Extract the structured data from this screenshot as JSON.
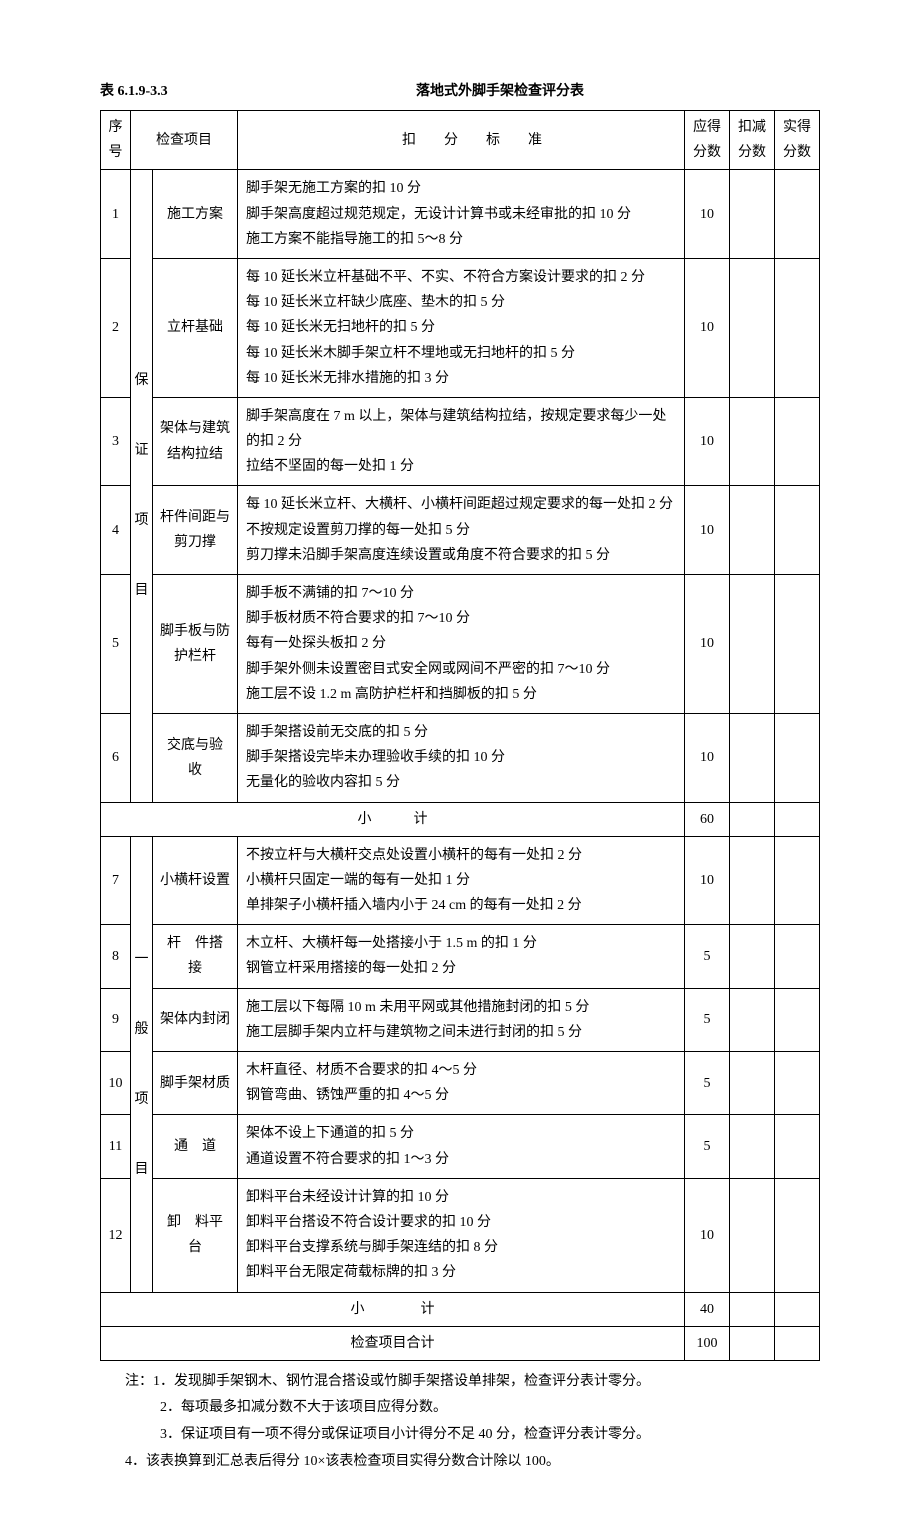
{
  "header": {
    "table_number": "表 6.1.9-3.3",
    "title": "落地式外脚手架检查评分表"
  },
  "columns": {
    "seq": "序号",
    "check_item": "检查项目",
    "criteria": "扣分标准",
    "should_score": "应得分数",
    "deduct_score": "扣减分数",
    "actual_score": "实得分数"
  },
  "group1_label": "保证项目",
  "group2_label": "一般项目",
  "rows": [
    {
      "seq": "1",
      "item": "施工方案",
      "criteria": "脚手架无施工方案的扣 10 分\n脚手架高度超过规范规定，无设计计算书或未经审批的扣 10 分\n施工方案不能指导施工的扣 5～8 分",
      "score": "10"
    },
    {
      "seq": "2",
      "item": "立杆基础",
      "criteria": "每 10 延长米立杆基础不平、不实、不符合方案设计要求的扣 2 分\n每 10 延长米立杆缺少底座、垫木的扣 5 分\n每 10 延长米无扫地杆的扣 5 分\n每 10 延长米木脚手架立杆不埋地或无扫地杆的扣 5 分\n每 10 延长米无排水措施的扣 3 分",
      "score": "10"
    },
    {
      "seq": "3",
      "item": "架体与建筑结构拉结",
      "criteria": "脚手架高度在 7 m 以上，架体与建筑结构拉结，按规定要求每少一处的扣 2 分\n拉结不坚固的每一处扣 1 分",
      "score": "10"
    },
    {
      "seq": "4",
      "item": "杆件间距与剪刀撑",
      "criteria": "每 10 延长米立杆、大横杆、小横杆间距超过规定要求的每一处扣 2 分\n不按规定设置剪刀撑的每一处扣 5 分\n剪刀撑未沿脚手架高度连续设置或角度不符合要求的扣 5 分",
      "score": "10"
    },
    {
      "seq": "5",
      "item": "脚手板与防护栏杆",
      "criteria": "脚手板不满铺的扣 7～10 分\n脚手板材质不符合要求的扣 7～10 分\n每有一处探头板扣 2 分\n脚手架外侧未设置密目式安全网或网间不严密的扣 7～10 分\n施工层不设 1.2 m 高防护栏杆和挡脚板的扣 5 分",
      "score": "10"
    },
    {
      "seq": "6",
      "item": "交底与验　收",
      "criteria": "脚手架搭设前无交底的扣 5 分\n脚手架搭设完毕未办理验收手续的扣 10 分\n无量化的验收内容扣 5 分",
      "score": "10"
    }
  ],
  "subtotal1": {
    "label": "小　　　计",
    "score": "60"
  },
  "rows2": [
    {
      "seq": "7",
      "item": "小横杆设置",
      "criteria": "不按立杆与大横杆交点处设置小横杆的每有一处扣 2 分\n小横杆只固定一端的每有一处扣 1 分\n单排架子小横杆插入墙内小于 24 cm 的每有一处扣 2 分",
      "score": "10"
    },
    {
      "seq": "8",
      "item": "杆　件搭　接",
      "criteria": "木立杆、大横杆每一处搭接小于 1.5 m 的扣 1 分\n钢管立杆采用搭接的每一处扣 2 分",
      "score": "5"
    },
    {
      "seq": "9",
      "item": "架体内封闭",
      "criteria": "施工层以下每隔 10 m 未用平网或其他措施封闭的扣 5 分\n施工层脚手架内立杆与建筑物之间未进行封闭的扣 5 分",
      "score": "5"
    },
    {
      "seq": "10",
      "item": "脚手架材质",
      "criteria": "木杆直径、材质不合要求的扣 4～5 分\n钢管弯曲、锈蚀严重的扣 4～5 分",
      "score": "5"
    },
    {
      "seq": "11",
      "item": "通　道",
      "criteria": "架体不设上下通道的扣 5 分\n通道设置不符合要求的扣 1～3 分",
      "score": "5"
    },
    {
      "seq": "12",
      "item": "卸　料平　台",
      "criteria": "卸料平台未经设计计算的扣 10 分\n卸料平台搭设不符合设计要求的扣 10 分\n卸料平台支撑系统与脚手架连结的扣 8 分\n卸料平台无限定荷载标牌的扣 3 分",
      "score": "10"
    }
  ],
  "subtotal2": {
    "label": "小　　　　计",
    "score": "40"
  },
  "total": {
    "label": "检查项目合计",
    "score": "100"
  },
  "notes": {
    "prefix": "注：",
    "items": [
      "1．发现脚手架钢木、钢竹混合搭设或竹脚手架搭设单排架，检查评分表计零分。",
      "2．每项最多扣减分数不大于该项目应得分数。",
      "3．保证项目有一项不得分或保证项目小计得分不足 40 分，检查评分表计零分。",
      "4．该表换算到汇总表后得分 10×该表检查项目实得分数合计除以 100。"
    ]
  }
}
